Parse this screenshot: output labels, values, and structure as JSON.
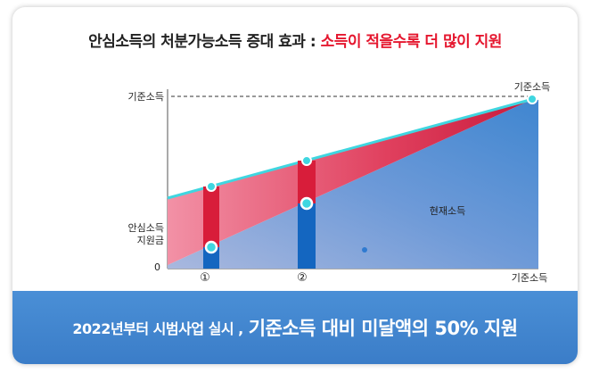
{
  "header": {
    "title_prefix": "안심소득의 처분가능소득 증대 효과 : ",
    "title_accent": "소득이 적을수록 더 많이 지원"
  },
  "diagram": {
    "y_top_label": "기준소득",
    "right_top_label": "기준소득",
    "subsidy_label_line1": "안심소득",
    "subsidy_label_line2": "지원금",
    "origin_label": "0",
    "current_income_label": "현재소득",
    "marker_1": "①",
    "marker_2": "②",
    "x_end_label": "기준소득"
  },
  "banner": {
    "prefix": "2022년부터 시범사업 실시 ,",
    "highlight": "기준소득 대비 미달액의 50% 지원"
  },
  "colors": {
    "blue": "#3f86d0",
    "pink": "#e84e6b",
    "cyan": "#3fd6e0",
    "red_bar": "#d81d3a",
    "blue_bar": "#1466c0"
  }
}
